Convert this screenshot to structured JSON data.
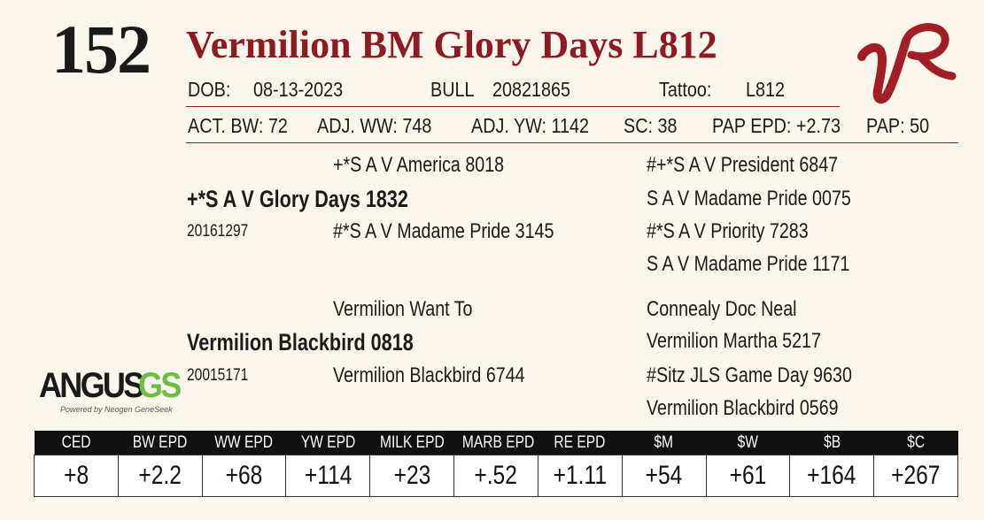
{
  "lot_number": "152",
  "animal_name": "Vermilion BM Glory Days L812",
  "id_line": {
    "dob_label": "DOB:",
    "dob": "08-13-2023",
    "sex": "BULL",
    "registration": "20821865",
    "tattoo_label": "Tattoo:",
    "tattoo": "L812"
  },
  "measures": [
    "ACT. BW: 72",
    "ADJ. WW: 748",
    "ADJ. YW: 1142",
    "SC: 38",
    "PAP EPD: +2.73",
    "PAP: 50"
  ],
  "pedigree": {
    "sire": {
      "name": "+*S A V Glory Days 1832",
      "registration": "20161297",
      "sire": "+*S A V America 8018",
      "dam": "#*S A V Madame Pride 3145",
      "sire_sire": "#+*S A V President 6847",
      "sire_dam": "S A V Madame Pride 0075",
      "dam_sire": "#*S A V Priority 7283",
      "dam_dam": "S A V Madame Pride 1171"
    },
    "dam": {
      "name": "Vermilion Blackbird 0818",
      "registration": "20015171",
      "sire": "Vermilion Want To",
      "dam": "Vermilion Blackbird 6744",
      "sire_sire": "Connealy Doc Neal",
      "sire_dam": "Vermilion Martha 5217",
      "dam_sire": "#Sitz JLS Game Day 9630",
      "dam_dam": "Vermilion Blackbird 0569"
    }
  },
  "angus_logo": {
    "main": "ANGUS",
    "suffix": "GS",
    "tagline": "Powered by Neogen GeneSeek"
  },
  "epd_table": {
    "headers": [
      "CED",
      "BW EPD",
      "WW EPD",
      "YW EPD",
      "MILK EPD",
      "MARB EPD",
      "RE EPD",
      "$M",
      "$W",
      "$B",
      "$C"
    ],
    "values": [
      "+8",
      "+2.2",
      "+68",
      "+114",
      "+23",
      "+.52",
      "+1.11",
      "+54",
      "+61",
      "+164",
      "+267"
    ]
  },
  "colors": {
    "accent_red": "#8e1b20",
    "angus_green": "#6dbe45",
    "background": "#fbf6ec"
  }
}
